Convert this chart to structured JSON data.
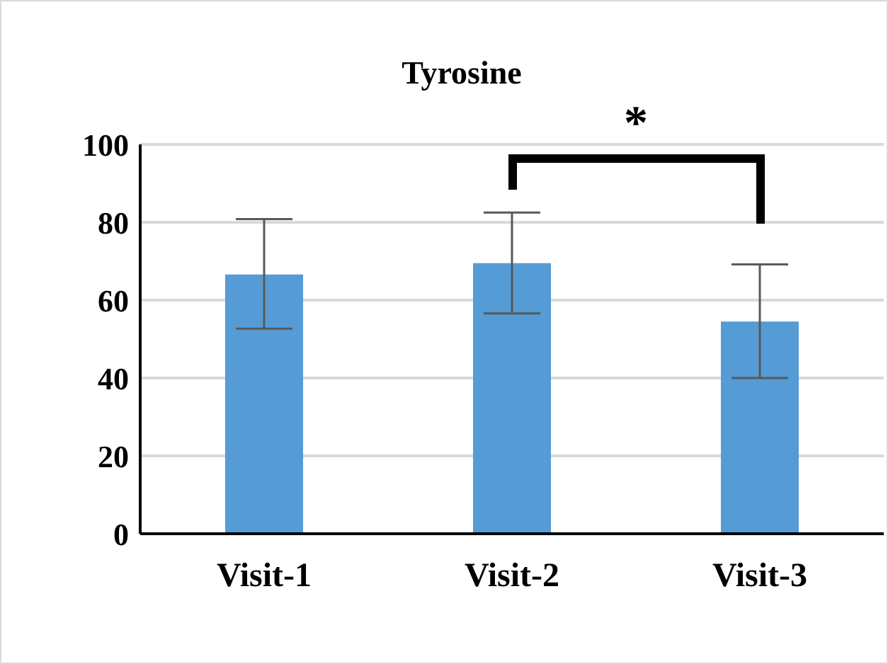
{
  "chart_data": {
    "type": "bar",
    "title": "Tyrosine",
    "categories": [
      "Visit-1",
      "Visit-2",
      "Visit-3"
    ],
    "values": [
      66.6,
      69.5,
      54.5
    ],
    "errors": [
      [
        52.7,
        80.8
      ],
      [
        56.6,
        82.5
      ],
      [
        40.0,
        69.2
      ]
    ],
    "color": "#559bd5",
    "ylim": [
      0,
      100
    ],
    "yticks": [
      0,
      20,
      40,
      60,
      80,
      100
    ],
    "grid": "y",
    "annotations": [
      "*"
    ]
  }
}
